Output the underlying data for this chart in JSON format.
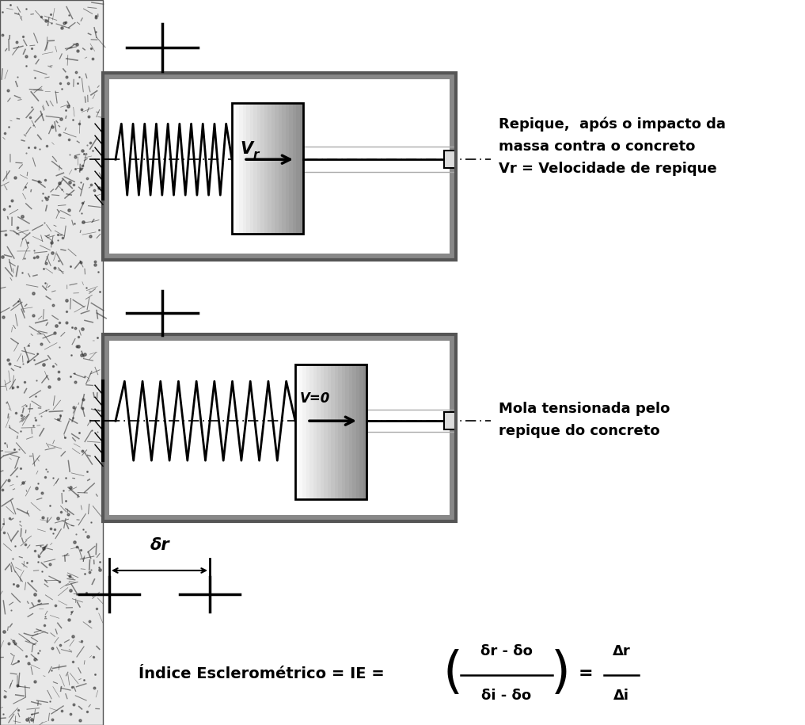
{
  "bg_color": "#ffffff",
  "text_box1": "Repique,  após o impacto da\nmassa contra o concreto\nVr = Velocidade de repique",
  "text_box2": "Mola tensionada pelo\nrepique do concreto",
  "delta_r_label": "δr",
  "formula_main": "Índice Esclerométrico = IE =",
  "formula_num": "δr - δo",
  "formula_den": "δi - δo",
  "formula_right_num": "Δr",
  "formula_right_den": "Δi"
}
